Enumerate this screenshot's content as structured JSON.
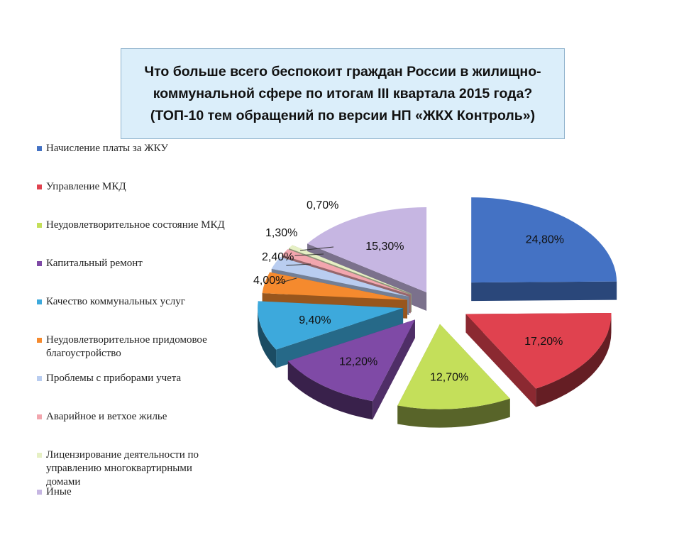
{
  "title": {
    "lines": [
      "Что больше всего беспокоит граждан России в жилищно-",
      "коммунальной сфере по итогам III квартала 2015 года?",
      "(ТОП-10 тем обращений по версии НП «ЖКХ Контроль»)"
    ]
  },
  "chart_data": {
    "type": "pie",
    "title": "Что больше всего беспокоит граждан России в жилищно-коммунальной сфере по итогам III квартала 2015 года? (ТОП-10 тем обращений по версии НП «ЖКХ Контроль»)",
    "legend_position": "left",
    "exploded": true,
    "style": "3d",
    "slices": [
      {
        "label": "Начисление платы за ЖКУ",
        "value": 24.8,
        "display": "24,80%",
        "color": "#4472c4"
      },
      {
        "label": "Управление МКД",
        "value": 17.2,
        "display": "17,20%",
        "color": "#e0424f"
      },
      {
        "label": "Неудовлетворительное состояние МКД",
        "value": 12.7,
        "display": "12,70%",
        "color": "#c4df5a"
      },
      {
        "label": "Капитальный ремонт",
        "value": 12.2,
        "display": "12,20%",
        "color": "#7f4aa6"
      },
      {
        "label": "Качество коммунальных услуг",
        "value": 9.4,
        "display": "9,40%",
        "color": "#3da9dc"
      },
      {
        "label": "Неудовлетворительное придомовое благоустройство",
        "value": 4.0,
        "display": "4,00%",
        "color": "#f58a2e"
      },
      {
        "label": "Проблемы с приборами учета",
        "value": 2.4,
        "display": "2,40%",
        "color": "#b9cdf0"
      },
      {
        "label": "Аварийное и ветхое жилье",
        "value": 1.3,
        "display": "1,30%",
        "color": "#f2a6ae"
      },
      {
        "label": "Лицензирование деятельности по управлению  многоквартирными домами",
        "value": 0.7,
        "display": "0,70%",
        "color": "#e6f0c4"
      },
      {
        "label": "Иные",
        "value": 15.3,
        "display": "15,30%",
        "color": "#c6b6e2"
      }
    ]
  }
}
